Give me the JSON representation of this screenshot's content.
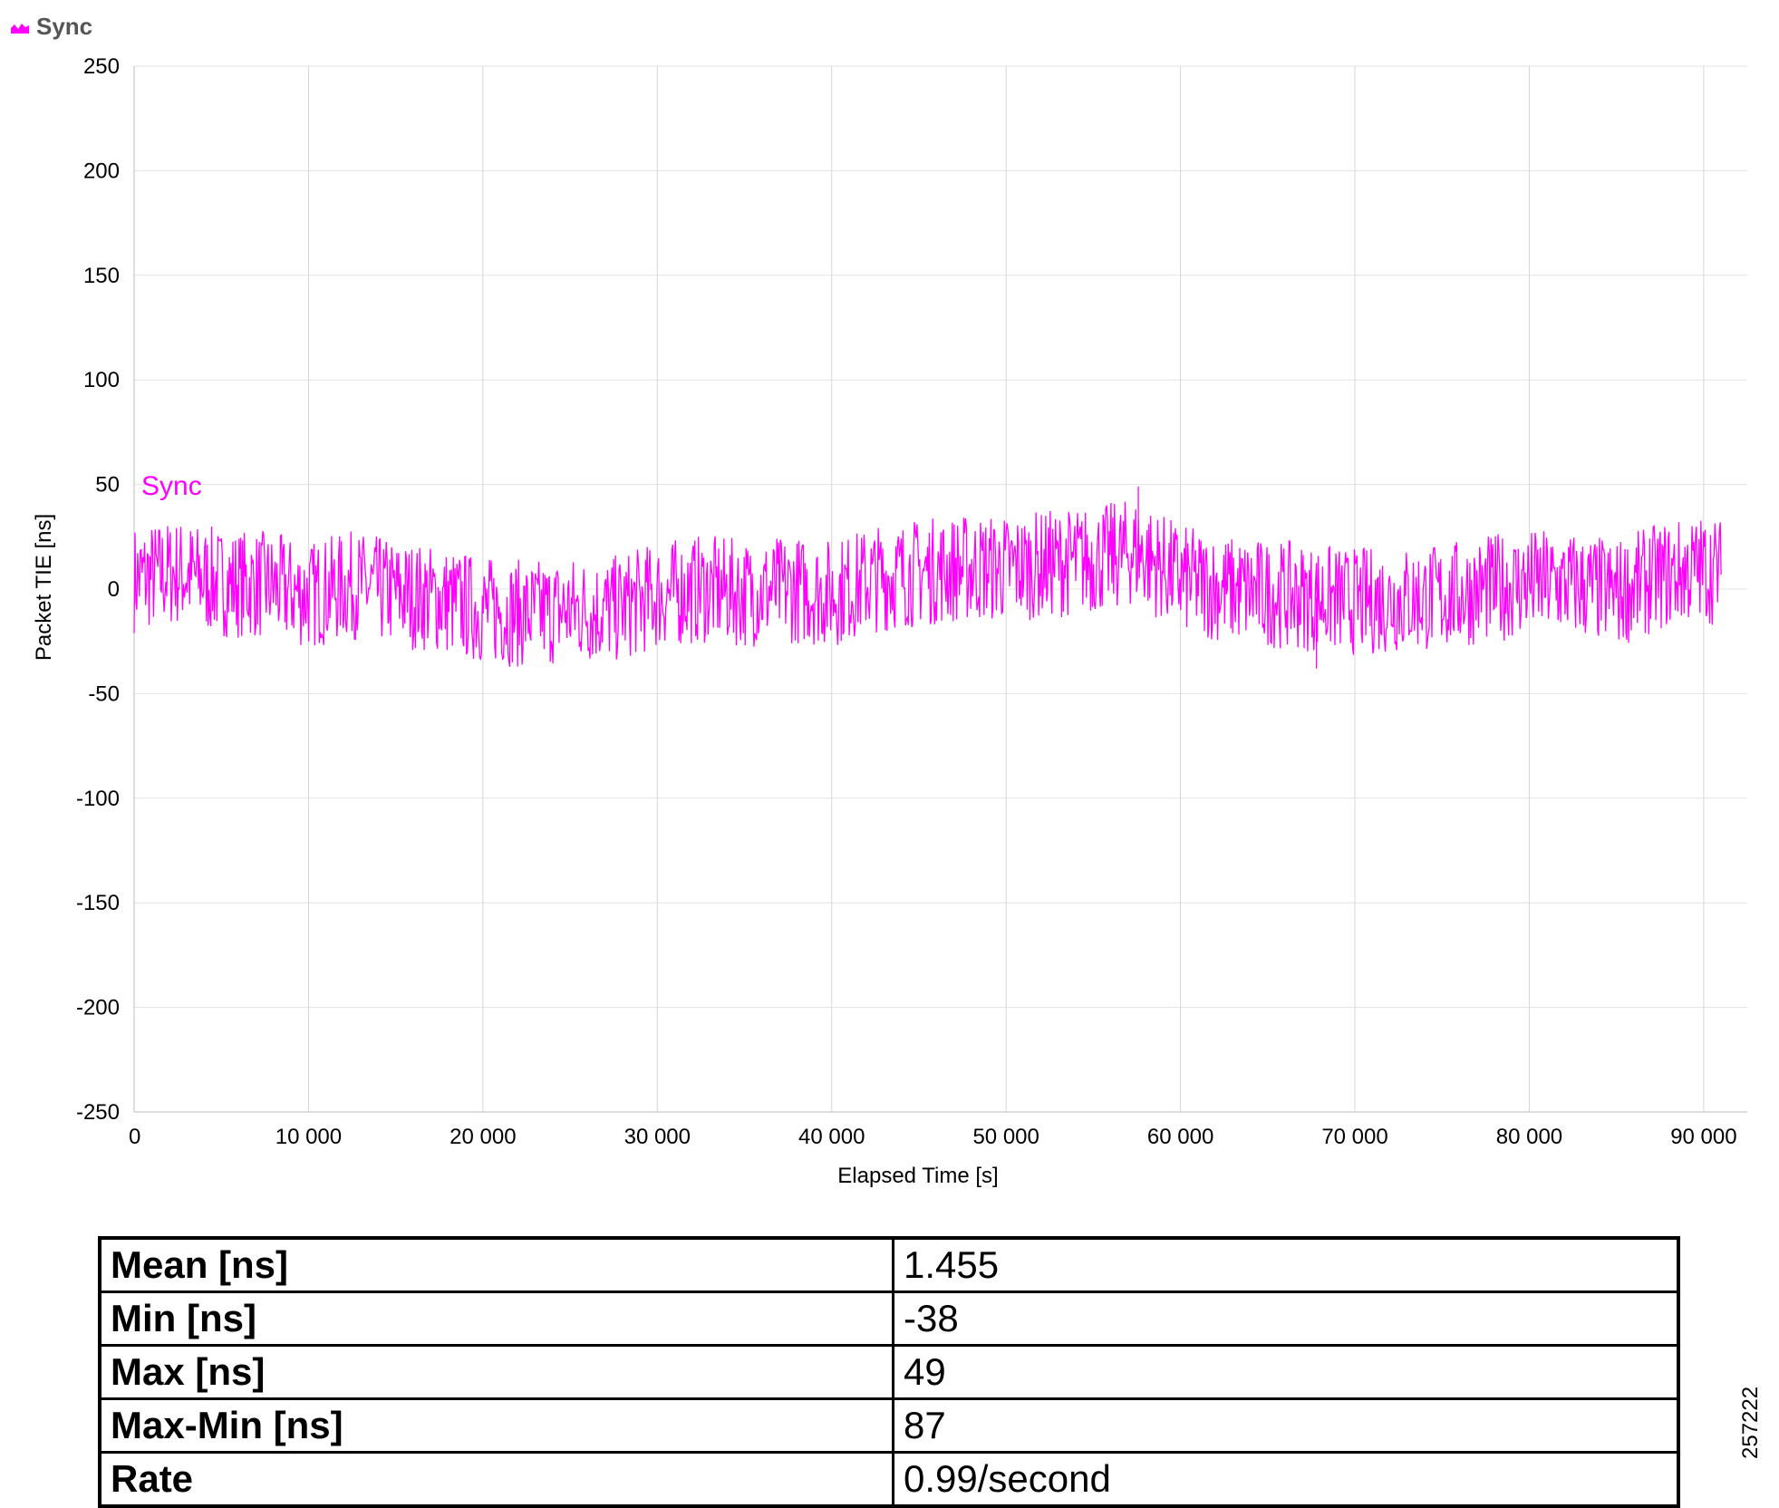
{
  "legend": {
    "label": "Sync",
    "color": "#ff00ff",
    "icon": "area-chart-icon"
  },
  "chart_data": {
    "type": "line",
    "xlabel": "Elapsed Time [s]",
    "ylabel": "Packet TIE [ns]",
    "xlim": [
      0,
      92500
    ],
    "ylim": [
      -250,
      250
    ],
    "xticks": [
      "0",
      "10 000",
      "20 000",
      "30 000",
      "40 000",
      "50 000",
      "60 000",
      "70 000",
      "80 000",
      "90 000"
    ],
    "yticks": [
      "250",
      "200",
      "150",
      "100",
      "50",
      "0",
      "-50",
      "-100",
      "-150",
      "-200",
      "-250"
    ],
    "grid": true,
    "series": [
      {
        "name": "Sync",
        "color": "#ff00ff",
        "annotation": "Sync",
        "x": [
          0,
          2500,
          5000,
          7500,
          10000,
          12500,
          15000,
          17500,
          20000,
          22500,
          25000,
          27500,
          30000,
          32500,
          35000,
          37500,
          40000,
          42500,
          45000,
          47500,
          50000,
          52500,
          55000,
          57500,
          60000,
          62500,
          65000,
          67500,
          70000,
          72500,
          75000,
          77500,
          80000,
          82500,
          85000,
          87500,
          90000,
          91000
        ],
        "values": [
          5,
          8,
          3,
          2,
          -3,
          2,
          -2,
          -5,
          -10,
          -12,
          -10,
          -10,
          -3,
          0,
          -2,
          0,
          -2,
          5,
          8,
          10,
          10,
          12,
          14,
          18,
          5,
          0,
          -2,
          -4,
          -6,
          -5,
          -4,
          0,
          3,
          2,
          -2,
          6,
          10,
          8
        ],
        "min": -38,
        "max": 49
      }
    ]
  },
  "stats": [
    {
      "label": "Mean [ns]",
      "value": "1.455"
    },
    {
      "label": "Min [ns]",
      "value": "-38"
    },
    {
      "label": "Max [ns]",
      "value": "49"
    },
    {
      "label": "Max-Min [ns]",
      "value": "87"
    },
    {
      "label": "Rate",
      "value": "0.99/second"
    }
  ],
  "figure_id": "257222"
}
